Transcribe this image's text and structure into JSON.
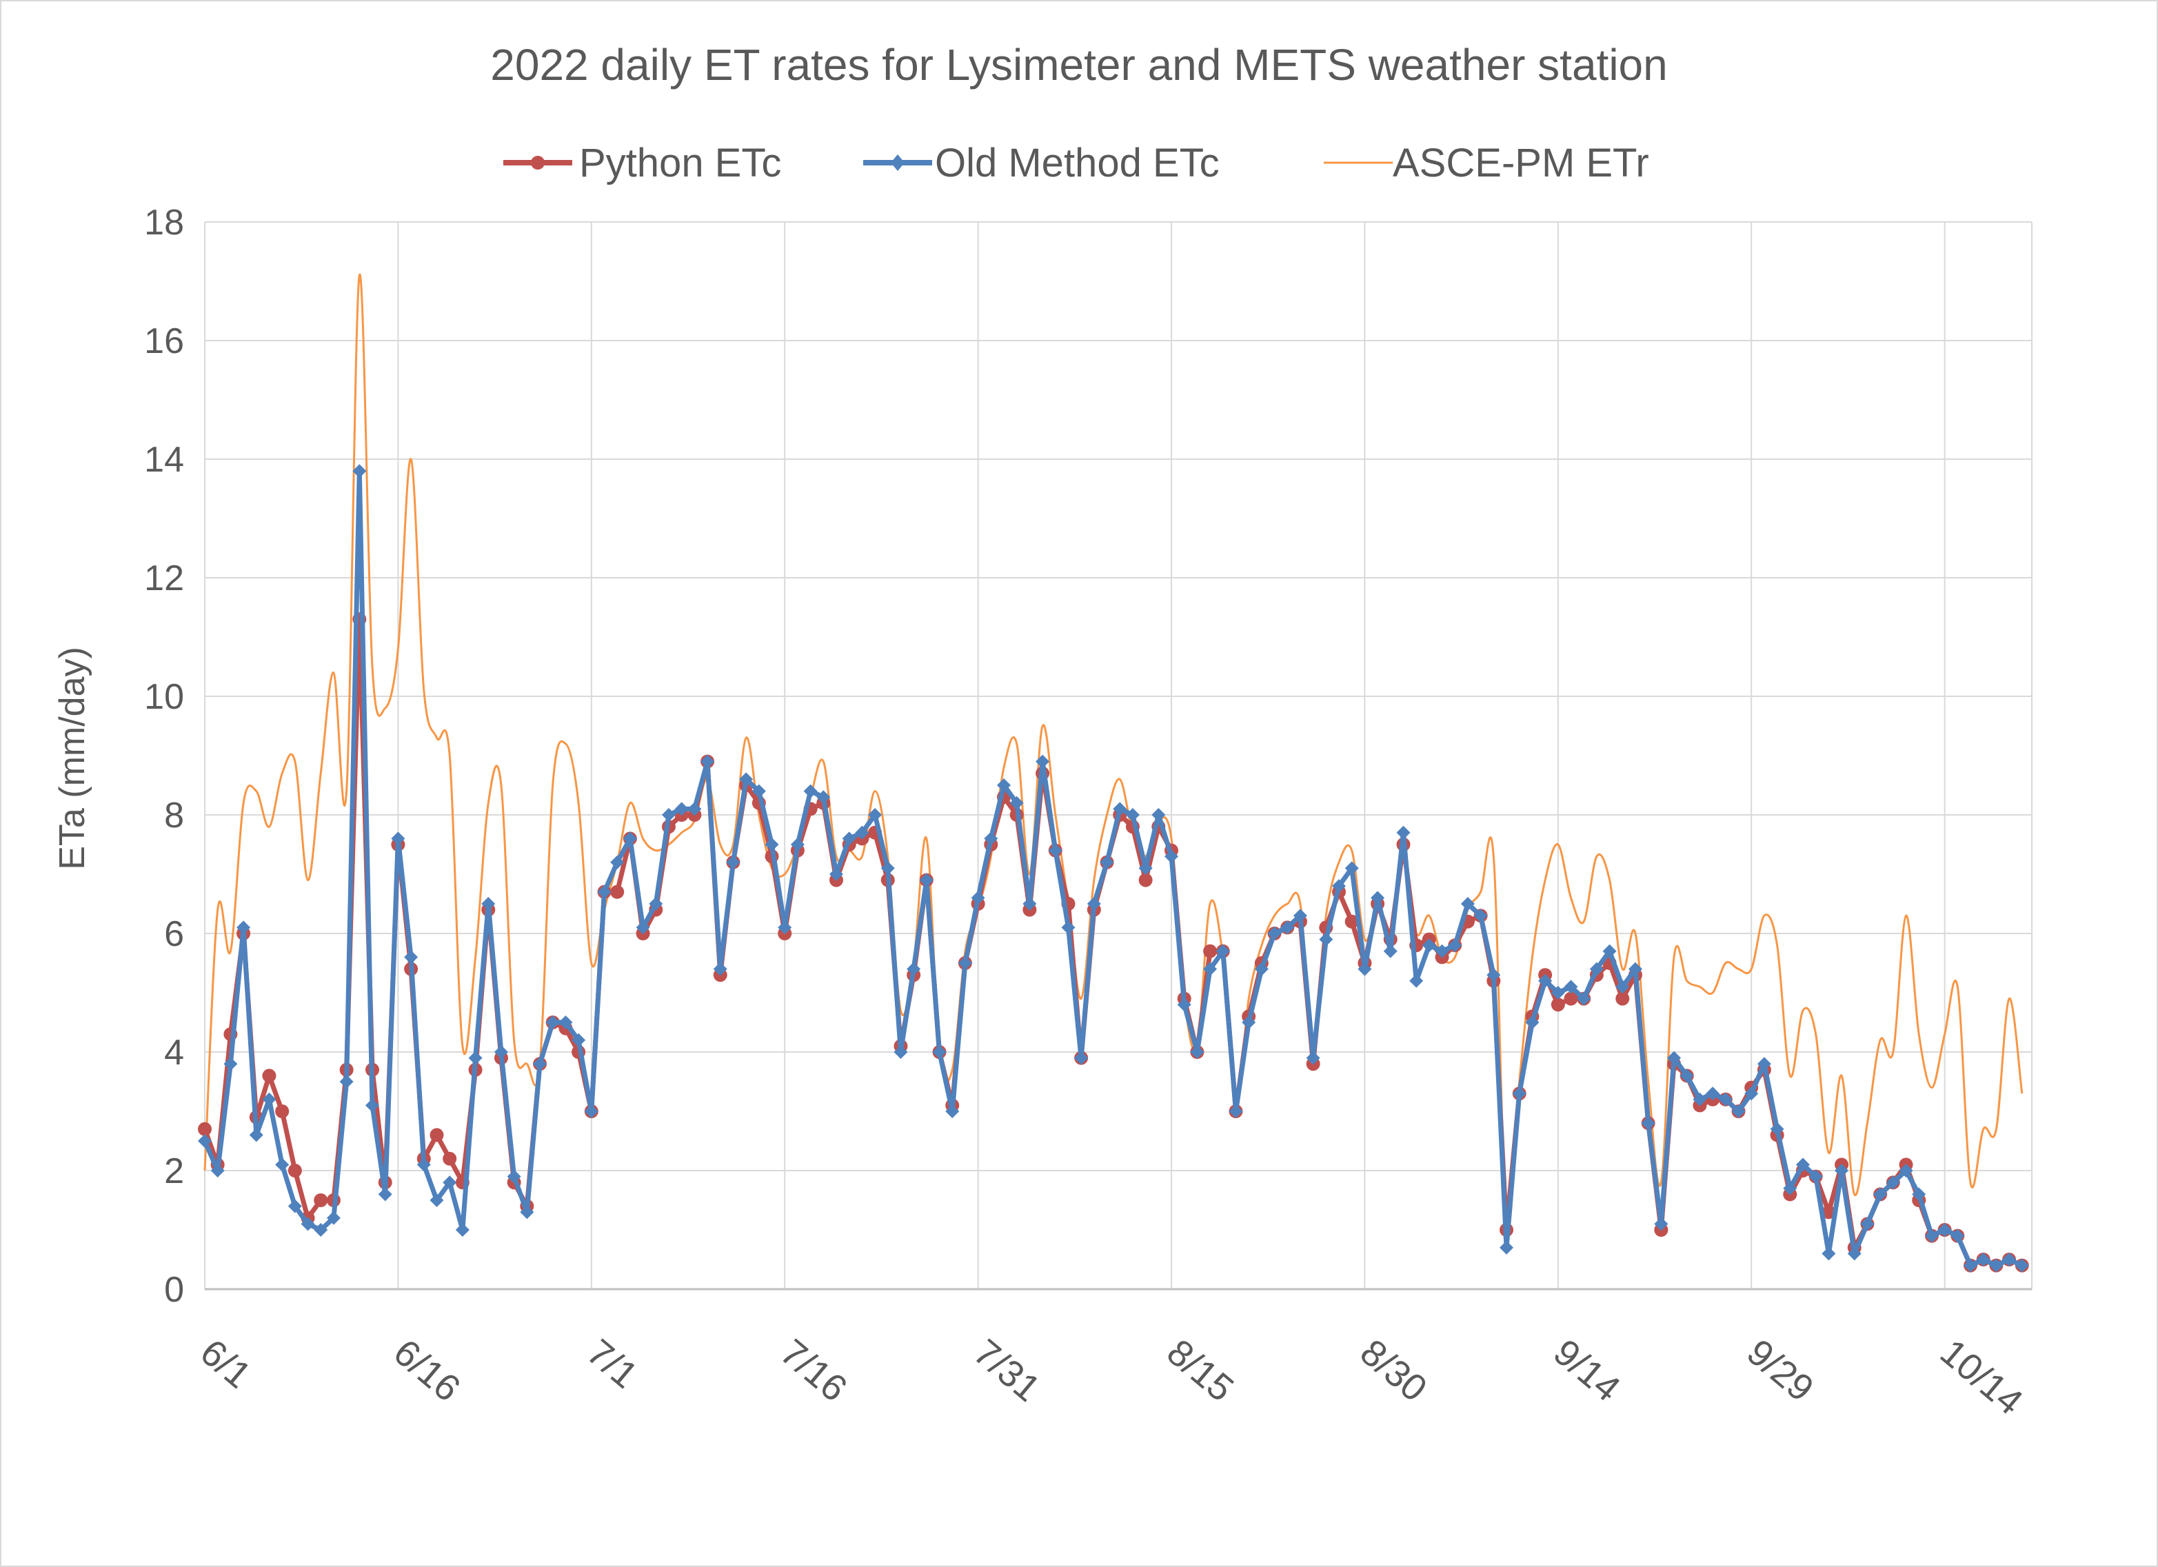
{
  "chart_data": {
    "type": "line",
    "title": "2022 daily ET rates for Lysimeter and METS weather station",
    "ylabel": "ETa (mm/day)",
    "xlabel": "",
    "ylim": [
      0,
      18
    ],
    "yticks": [
      "0",
      "2",
      "4",
      "6",
      "8",
      "10",
      "12",
      "14",
      "16",
      "18"
    ],
    "xticks": [
      "6/1",
      "6/16",
      "7/1",
      "7/16",
      "7/31",
      "8/15",
      "8/30",
      "9/14",
      "9/29",
      "10/14"
    ],
    "x_start": "6/1",
    "x_end": "10/20",
    "grid": true,
    "legend": "top",
    "series": [
      {
        "name": "Python ETc",
        "color": "#c0504d",
        "marker": "circle",
        "values": [
          2.7,
          2.1,
          4.3,
          6.0,
          2.9,
          3.6,
          3.0,
          2.0,
          1.2,
          1.5,
          1.5,
          3.7,
          11.3,
          3.7,
          1.8,
          7.5,
          5.4,
          2.2,
          2.6,
          2.2,
          1.8,
          3.7,
          6.4,
          3.9,
          1.8,
          1.4,
          3.8,
          4.5,
          4.4,
          4.0,
          3.0,
          6.7,
          6.7,
          7.6,
          6.0,
          6.4,
          7.8,
          8.0,
          8.0,
          8.9,
          5.3,
          7.2,
          8.5,
          8.2,
          7.3,
          6.0,
          7.4,
          8.1,
          8.2,
          6.9,
          7.5,
          7.6,
          7.7,
          6.9,
          4.1,
          5.3,
          6.9,
          4.0,
          3.1,
          5.5,
          6.5,
          7.5,
          8.3,
          8.0,
          6.4,
          8.7,
          7.4,
          6.5,
          3.9,
          6.4,
          7.2,
          8.0,
          7.8,
          6.9,
          7.8,
          7.4,
          4.9,
          4.0,
          5.7,
          5.7,
          3.0,
          4.6,
          5.5,
          6.0,
          6.1,
          6.2,
          3.8,
          6.1,
          6.7,
          6.2,
          5.5,
          6.5,
          5.9,
          7.5,
          5.8,
          5.9,
          5.6,
          5.8,
          6.2,
          6.3,
          5.2,
          1.0,
          3.3,
          4.6,
          5.3,
          4.8,
          4.9,
          4.9,
          5.3,
          5.5,
          4.9,
          5.3,
          2.8,
          1.0,
          3.8,
          3.6,
          3.1,
          3.2,
          3.2,
          3.0,
          3.4,
          3.7,
          2.6,
          1.6,
          2.0,
          1.9,
          1.3,
          2.1,
          0.7,
          1.1,
          1.6,
          1.8,
          2.1,
          1.5,
          0.9,
          1.0,
          0.9,
          0.4,
          0.5,
          0.4,
          0.5,
          0.4
        ]
      },
      {
        "name": "Old Method ETc",
        "color": "#4f81bd",
        "marker": "diamond",
        "values": [
          2.5,
          2.0,
          3.8,
          6.1,
          2.6,
          3.2,
          2.1,
          1.4,
          1.1,
          1.0,
          1.2,
          3.5,
          13.8,
          3.1,
          1.6,
          7.6,
          5.6,
          2.1,
          1.5,
          1.8,
          1.0,
          3.9,
          6.5,
          4.0,
          1.9,
          1.3,
          3.8,
          4.5,
          4.5,
          4.2,
          3.0,
          6.7,
          7.2,
          7.6,
          6.1,
          6.5,
          8.0,
          8.1,
          8.1,
          8.9,
          5.4,
          7.2,
          8.6,
          8.4,
          7.5,
          6.1,
          7.5,
          8.4,
          8.3,
          7.0,
          7.6,
          7.7,
          8.0,
          7.1,
          4.0,
          5.4,
          6.9,
          4.0,
          3.0,
          5.5,
          6.6,
          7.6,
          8.5,
          8.2,
          6.5,
          8.9,
          7.4,
          6.1,
          3.9,
          6.5,
          7.2,
          8.1,
          8.0,
          7.1,
          8.0,
          7.3,
          4.8,
          4.0,
          5.4,
          5.7,
          3.0,
          4.5,
          5.4,
          6.0,
          6.1,
          6.3,
          3.9,
          5.9,
          6.8,
          7.1,
          5.4,
          6.6,
          5.7,
          7.7,
          5.2,
          5.8,
          5.7,
          5.8,
          6.5,
          6.3,
          5.3,
          0.7,
          3.3,
          4.5,
          5.2,
          5.0,
          5.1,
          4.9,
          5.4,
          5.7,
          5.1,
          5.4,
          2.8,
          1.1,
          3.9,
          3.6,
          3.2,
          3.3,
          3.2,
          3.0,
          3.3,
          3.8,
          2.7,
          1.7,
          2.1,
          1.9,
          0.6,
          2.0,
          0.6,
          1.1,
          1.6,
          1.8,
          2.0,
          1.6,
          0.9,
          1.0,
          0.9,
          0.4,
          0.5,
          0.4,
          0.5,
          0.4
        ]
      },
      {
        "name": "ASCE-PM ETr",
        "color": "#f79646",
        "marker": "none",
        "values": [
          2.0,
          6.4,
          5.7,
          8.2,
          8.4,
          7.8,
          8.7,
          8.9,
          6.9,
          8.7,
          10.4,
          8.4,
          17.1,
          10.5,
          9.8,
          10.8,
          14.0,
          10.1,
          9.3,
          9.0,
          4.1,
          5.6,
          8.2,
          8.5,
          4.2,
          3.8,
          3.8,
          8.5,
          9.2,
          8.2,
          5.5,
          6.4,
          7.2,
          8.2,
          7.6,
          7.4,
          7.5,
          7.7,
          7.9,
          8.6,
          7.5,
          7.5,
          9.3,
          8.0,
          7.1,
          7.0,
          7.5,
          8.3,
          8.9,
          7.3,
          7.4,
          7.3,
          8.4,
          7.3,
          4.7,
          5.5,
          7.6,
          4.0,
          3.7,
          5.7,
          6.4,
          7.3,
          8.8,
          9.2,
          7.0,
          9.5,
          8.0,
          6.5,
          4.9,
          6.9,
          8.0,
          8.6,
          7.7,
          7.3,
          7.9,
          7.6,
          4.9,
          4.1,
          6.5,
          5.6,
          3.1,
          4.9,
          5.8,
          6.3,
          6.5,
          6.5,
          4.1,
          6.3,
          7.2,
          7.4,
          5.9,
          6.4,
          5.8,
          7.3,
          6.0,
          6.3,
          5.6,
          5.6,
          6.4,
          6.7,
          7.3,
          1.1,
          3.5,
          5.6,
          6.9,
          7.5,
          6.6,
          6.2,
          7.3,
          6.9,
          5.4,
          6.0,
          3.5,
          1.8,
          5.6,
          5.2,
          5.1,
          5.0,
          5.5,
          5.4,
          5.4,
          6.3,
          5.8,
          3.6,
          4.7,
          4.3,
          2.3,
          3.6,
          1.6,
          2.8,
          4.2,
          4.0,
          6.3,
          4.3,
          3.4,
          4.3,
          5.1,
          1.8,
          2.7,
          2.7,
          4.9,
          3.3
        ]
      }
    ]
  }
}
